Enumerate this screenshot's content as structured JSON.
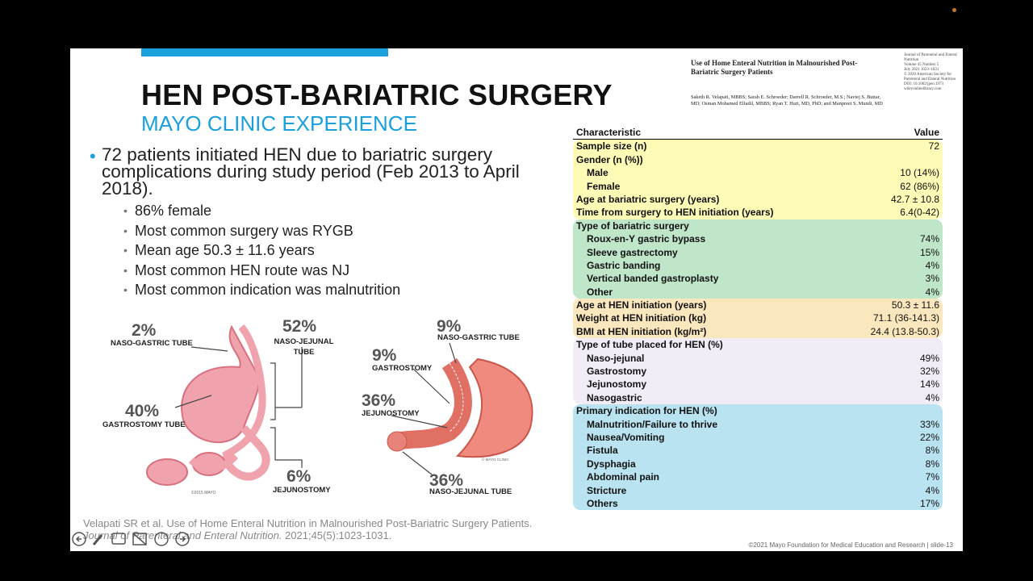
{
  "slide": {
    "title": "HEN POST-BARIATRIC SURGERY",
    "subtitle": "MAYO CLINIC EXPERIENCE",
    "bullet": "72 patients initiated HEN due to bariatric surgery complications during study period (Feb 2013 to April 2018).",
    "sub_bullets": [
      "86% female",
      "Most common surgery was RYGB",
      "Mean age 50.3 ± 11.6 years",
      "Most common HEN route was NJ",
      "Most common indication was malnutrition"
    ],
    "figure_left": {
      "labels": [
        {
          "pct": "2%",
          "text": "NASO-GASTRIC TUBE"
        },
        {
          "pct": "52%",
          "text": "NASO-JEJUNAL TUBE"
        },
        {
          "pct": "40%",
          "text": "GASTROSTOMY TUBE"
        },
        {
          "pct": "6%",
          "text": "JEJUNOSTOMY"
        }
      ],
      "credit": "©2015 MAYO"
    },
    "figure_right": {
      "labels": [
        {
          "pct": "9%",
          "text": "NASO-GASTRIC TUBE"
        },
        {
          "pct": "9%",
          "text": "GASTROSTOMY"
        },
        {
          "pct": "36%",
          "text": "JEJUNOSTOMY"
        },
        {
          "pct": "36%",
          "text": "NASO-JEJUNAL TUBE"
        }
      ],
      "credit": "© MAYO CLINIC"
    },
    "citation": {
      "text": "Velapati SR et al. Use of Home Enteral Nutrition in Malnourished Post-Bariatric Surgery Patients.",
      "journal": "Journal of Parenteral and Enteral Nutrition.",
      "details": "2021;45(5):1023-1031."
    },
    "footer": "©2021 Mayo Foundation for Medical Education and Research  |  slide-13"
  },
  "paper": {
    "title": "Use of Home Enteral Nutrition in Malnourished Post-Bariatric Surgery Patients",
    "authors": "Saketh R. Velapati, MBBS; Sarah E. Schroeder; Darrell R. Schroeder, M.S.; Navtej S. Buttar, MD; Osman Mohamed Elfadil, MBBS; Ryan T. Hurt, MD, PhD; and Manpreet S. Mundi, MD",
    "journal_info": [
      "Journal of Parenteral and Enteral",
      "Nutrition",
      "Volume 45 Number 5",
      "July 2021 1023–1031",
      "© 2020 American Society for",
      "Parenteral and Enteral Nutrition",
      "DOI: 10.1002/jpen.1973",
      "wileyonlinelibrary.com"
    ]
  },
  "table": {
    "header": [
      "Characteristic",
      "Value"
    ],
    "groups": [
      {
        "rows": [
          {
            "label": "Sample size (n)",
            "value": "72"
          },
          {
            "label": "Gender (n (%))",
            "items": [
              {
                "label": "Male",
                "value": "10 (14%)"
              },
              {
                "label": "Female",
                "value": "62 (86%)"
              }
            ]
          },
          {
            "label": "Age at bariatric surgery (years)",
            "value": "42.7 ± 10.8"
          },
          {
            "label": "Time from surgery to HEN initiation (years)",
            "value": "6.4(0-42)"
          }
        ]
      },
      {
        "rows": [
          {
            "label": "Type of bariatric surgery",
            "items": [
              {
                "label": "Roux-en-Y gastric bypass",
                "value": "74%"
              },
              {
                "label": "Sleeve gastrectomy",
                "value": "15%"
              },
              {
                "label": "Gastric banding",
                "value": "4%"
              },
              {
                "label": "Vertical banded gastroplasty",
                "value": "3%"
              },
              {
                "label": "Other",
                "value": "4%"
              }
            ]
          }
        ]
      },
      {
        "rows": [
          {
            "label": "Age at HEN initiation (years)",
            "value": "50.3 ± 11.6"
          },
          {
            "label": "Weight at HEN initiation (kg)",
            "value": "71.1 (36-141.3)"
          },
          {
            "label": "BMI at HEN initiation (kg/m²)",
            "value": "24.4 (13.8-50.3)"
          }
        ]
      },
      {
        "rows": [
          {
            "label": "Type of tube placed for HEN (%)",
            "items": [
              {
                "label": "Naso-jejunal",
                "value": "49%"
              },
              {
                "label": "Gastrostomy",
                "value": "32%"
              },
              {
                "label": "Jejunostomy",
                "value": "14%"
              },
              {
                "label": "Nasogastric",
                "value": "4%"
              }
            ]
          }
        ]
      },
      {
        "rows": [
          {
            "label": "Primary indication for HEN (%)",
            "items": [
              {
                "label": "Malnutrition/Failure to thrive",
                "value": "33%"
              },
              {
                "label": "Nausea/Vomiting",
                "value": "22%"
              },
              {
                "label": "Fistula",
                "value": "8%"
              },
              {
                "label": "Dysphagia",
                "value": "8%"
              },
              {
                "label": "Abdominal pain",
                "value": "7%"
              },
              {
                "label": "Stricture",
                "value": "4%"
              },
              {
                "label": "Others",
                "value": "17%"
              }
            ]
          }
        ]
      }
    ]
  }
}
